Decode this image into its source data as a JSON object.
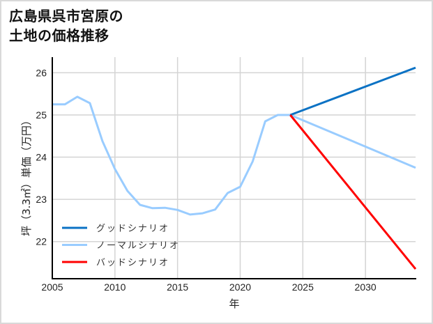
{
  "title": "広島県呉市宮原の\n土地の価格推移",
  "colors": {
    "good": "#0b72c4",
    "normal": "#99ccff",
    "bad": "#ff0000",
    "grid": "#d4d4d4",
    "axis": "#000000"
  },
  "chart_data": {
    "type": "line",
    "title": "広島県呉市宮原の土地の価格推移",
    "xlabel": "年",
    "ylabel": "坪（3.3㎡）単価（万円）",
    "xlim": [
      2005,
      2034
    ],
    "ylim": [
      21.12,
      26.37
    ],
    "xticks": [
      2005,
      2010,
      2015,
      2020,
      2025,
      2030
    ],
    "yticks": [
      22,
      23,
      24,
      25,
      26
    ],
    "grid": true,
    "legend_position": "lower left",
    "series": [
      {
        "name": "グッドシナリオ",
        "color": "#0b72c4",
        "x": [
          2024,
          2034
        ],
        "y": [
          25.0,
          26.12
        ]
      },
      {
        "name": "ノーマルシナリオ",
        "color": "#99ccff",
        "x": [
          2005,
          2006,
          2007,
          2008,
          2009,
          2010,
          2011,
          2012,
          2013,
          2014,
          2015,
          2016,
          2017,
          2018,
          2019,
          2020,
          2021,
          2022,
          2023,
          2024,
          2034
        ],
        "y": [
          25.25,
          25.25,
          25.43,
          25.28,
          24.38,
          23.72,
          23.2,
          22.87,
          22.79,
          22.8,
          22.75,
          22.64,
          22.67,
          22.76,
          23.15,
          23.3,
          23.9,
          24.85,
          25.0,
          25.0,
          23.75
        ]
      },
      {
        "name": "バッドシナリオ",
        "color": "#ff0000",
        "x": [
          2024,
          2034
        ],
        "y": [
          25.0,
          21.35
        ]
      }
    ]
  }
}
